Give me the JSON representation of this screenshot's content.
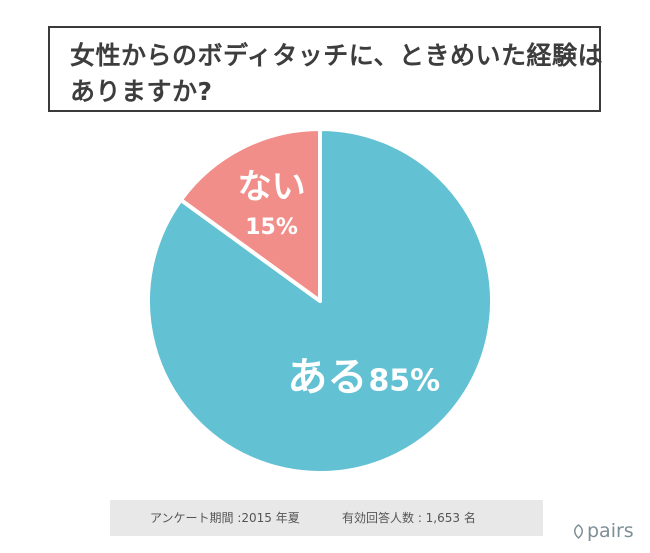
{
  "title": {
    "line1": "女性からのボディタッチに、ときめいた経験は",
    "line2": "ありますか?"
  },
  "chart_data": {
    "type": "pie",
    "slices": [
      {
        "label": "ある",
        "value": 85,
        "value_label": "85%",
        "color": "#62c1d3"
      },
      {
        "label": "ない",
        "value": 15,
        "value_label": "15%",
        "color": "#f28e8a"
      }
    ]
  },
  "footer": {
    "period": "アンケート期間 :2015 年夏",
    "respondents": "有効回答人数 : 1,653 名"
  },
  "brand": {
    "name": "pairs",
    "color": "#7d8e96"
  }
}
